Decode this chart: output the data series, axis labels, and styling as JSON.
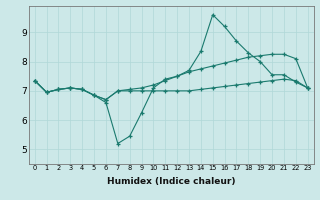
{
  "xlabel": "Humidex (Indice chaleur)",
  "bg_color": "#cce8e8",
  "line_color": "#1a7a6e",
  "grid_color": "#b0d8d8",
  "xlim": [
    -0.5,
    23.5
  ],
  "ylim": [
    4.5,
    9.9
  ],
  "xticks": [
    0,
    1,
    2,
    3,
    4,
    5,
    6,
    7,
    8,
    9,
    10,
    11,
    12,
    13,
    14,
    15,
    16,
    17,
    18,
    19,
    20,
    21,
    22,
    23
  ],
  "yticks": [
    5,
    6,
    7,
    8,
    9
  ],
  "line1_x": [
    0,
    1,
    2,
    3,
    4,
    5,
    6,
    7,
    8,
    9,
    10,
    11,
    12,
    13,
    14,
    15,
    16,
    17,
    18,
    19,
    20,
    21,
    22,
    23
  ],
  "line1_y": [
    7.35,
    6.95,
    7.05,
    7.1,
    7.05,
    6.85,
    6.6,
    5.2,
    5.45,
    6.25,
    7.1,
    7.4,
    7.5,
    7.7,
    8.35,
    9.6,
    9.2,
    8.7,
    8.3,
    8.0,
    7.55,
    7.55,
    7.3,
    7.1
  ],
  "line2_x": [
    0,
    1,
    2,
    3,
    4,
    5,
    6,
    7,
    8,
    9,
    10,
    11,
    12,
    13,
    14,
    15,
    16,
    17,
    18,
    19,
    20,
    21,
    22,
    23
  ],
  "line2_y": [
    7.35,
    6.95,
    7.05,
    7.1,
    7.05,
    6.85,
    6.7,
    7.0,
    7.0,
    7.0,
    7.0,
    7.0,
    7.0,
    7.0,
    7.05,
    7.1,
    7.15,
    7.2,
    7.25,
    7.3,
    7.35,
    7.4,
    7.35,
    7.1
  ],
  "line3_x": [
    0,
    1,
    2,
    3,
    4,
    5,
    6,
    7,
    8,
    9,
    10,
    11,
    12,
    13,
    14,
    15,
    16,
    17,
    18,
    19,
    20,
    21,
    22,
    23
  ],
  "line3_y": [
    7.35,
    6.95,
    7.05,
    7.1,
    7.05,
    6.85,
    6.7,
    7.0,
    7.05,
    7.1,
    7.2,
    7.35,
    7.5,
    7.65,
    7.75,
    7.85,
    7.95,
    8.05,
    8.15,
    8.2,
    8.25,
    8.25,
    8.1,
    7.1
  ],
  "xlabel_fontsize": 6.5,
  "xtick_fontsize": 4.8,
  "ytick_fontsize": 6.5
}
